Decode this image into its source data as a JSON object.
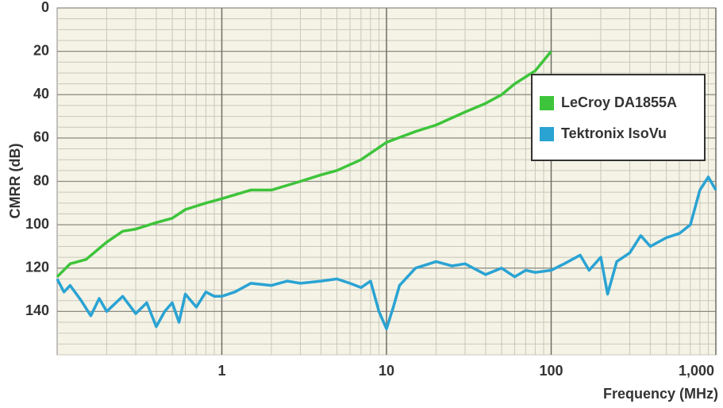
{
  "chart_data": {
    "type": "line",
    "xlabel": "Frequency (MHz)",
    "ylabel": "CMRR (dB)",
    "xscale": "log",
    "xlim": [
      0.1,
      1000
    ],
    "xticks": [
      1,
      10,
      100,
      {
        "value": 1000,
        "label": "1,000"
      }
    ],
    "ylim": [
      160,
      0
    ],
    "yticks": [
      0,
      20,
      40,
      60,
      80,
      100,
      120,
      140
    ],
    "grid": true,
    "legend": "upper right",
    "series": [
      {
        "name": "LeCroy DA1855A",
        "color": "#3ec43a",
        "x": [
          0.1,
          0.12,
          0.15,
          0.2,
          0.25,
          0.3,
          0.4,
          0.5,
          0.6,
          0.8,
          1,
          1.5,
          2,
          3,
          4,
          5,
          7,
          10,
          15,
          20,
          30,
          40,
          50,
          60,
          80,
          100
        ],
        "values": [
          124,
          118,
          116,
          108,
          103,
          102,
          99,
          97,
          93,
          90,
          88,
          84,
          84,
          80,
          77,
          75,
          70,
          62,
          57,
          54,
          48,
          44,
          40,
          35,
          29,
          20
        ]
      },
      {
        "name": "Tektronix IsoVu",
        "color": "#2aa3d3",
        "x": [
          0.1,
          0.11,
          0.12,
          0.14,
          0.16,
          0.18,
          0.2,
          0.22,
          0.25,
          0.3,
          0.35,
          0.4,
          0.45,
          0.5,
          0.55,
          0.6,
          0.7,
          0.8,
          0.9,
          1,
          1.2,
          1.5,
          2,
          2.5,
          3,
          4,
          5,
          6,
          7,
          8,
          9,
          10,
          11,
          12,
          15,
          20,
          25,
          30,
          40,
          50,
          60,
          70,
          80,
          100,
          120,
          150,
          170,
          200,
          220,
          250,
          300,
          350,
          400,
          500,
          600,
          700,
          800,
          900,
          1000
        ],
        "values": [
          125,
          131,
          128,
          135,
          142,
          134,
          140,
          137,
          133,
          141,
          136,
          147,
          140,
          136,
          145,
          132,
          138,
          131,
          133,
          133,
          131,
          127,
          128,
          126,
          127,
          126,
          125,
          127,
          129,
          126,
          140,
          148,
          138,
          128,
          120,
          117,
          119,
          118,
          123,
          120,
          124,
          121,
          122,
          121,
          118,
          114,
          121,
          115,
          132,
          117,
          113,
          105,
          110,
          106,
          104,
          100,
          84,
          78,
          84
        ]
      }
    ]
  }
}
